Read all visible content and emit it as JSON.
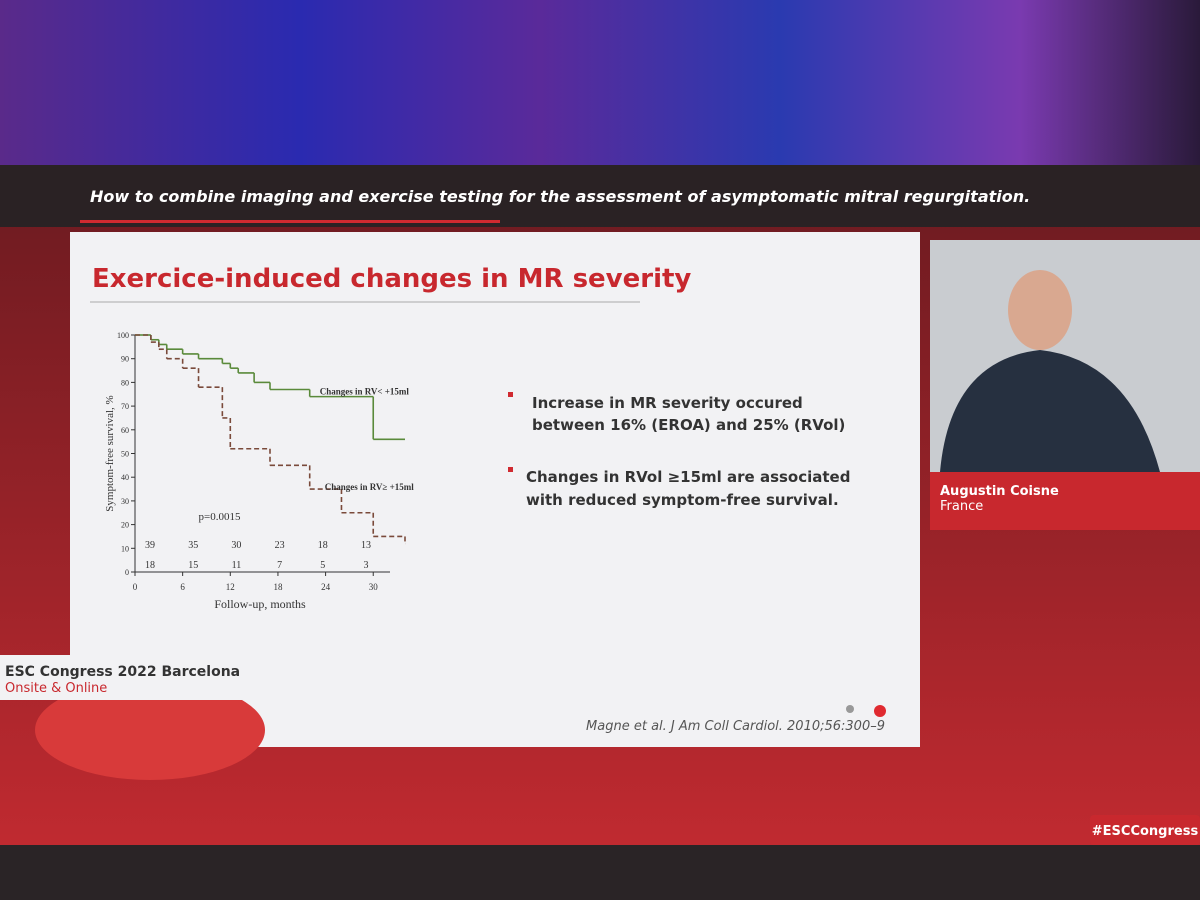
{
  "header": {
    "title": "How to combine imaging and exercise testing for the assessment of asymptomatic mitral regurgitation."
  },
  "slide": {
    "title": "Exercice-induced changes in MR severity",
    "bullets": [
      [
        "Increase in MR severity occured",
        "between 16% (EROA) and 25% (RVol)"
      ],
      [
        "Changes in RVol ≥15ml are associated",
        "with reduced symptom-free survival."
      ]
    ],
    "citation": "Magne et al. J Am Coll Cardiol. 2010;56:300–9",
    "footer": [
      "ESC Congress 2022 Barcelona",
      "Onsite & Online"
    ]
  },
  "speaker": {
    "name": "Augustin Coisne",
    "country": "France"
  },
  "hashtag": "#ESCCongress",
  "chart_data": {
    "type": "line",
    "xlabel": "Follow-up, months",
    "ylabel": "Symptom-free survival, %",
    "annotation": "p=0.0015",
    "x": [
      0,
      2,
      3,
      4,
      6,
      8,
      11,
      12,
      13,
      15,
      17,
      22,
      26,
      30,
      34
    ],
    "series": [
      {
        "name": "Changes in RV< +15ml",
        "color": "#5a8a3a",
        "dashed": false,
        "values": [
          100,
          98,
          96,
          94,
          92,
          90,
          88,
          86,
          84,
          80,
          77,
          74,
          74,
          56,
          56
        ]
      },
      {
        "name": "Changes in RV≥ +15ml",
        "color": "#7a4a3a",
        "dashed": true,
        "values": [
          100,
          97,
          94,
          90,
          86,
          78,
          65,
          52,
          52,
          52,
          45,
          35,
          25,
          15,
          12
        ]
      }
    ],
    "numbers_at_risk": [
      [
        39,
        35,
        30,
        23,
        18,
        13
      ],
      [
        18,
        15,
        11,
        7,
        5,
        3
      ]
    ],
    "xlim": [
      0,
      34
    ],
    "ylim": [
      0,
      100
    ],
    "xticks": [
      0,
      6,
      12,
      18,
      24,
      30
    ],
    "yticks": [
      0,
      10,
      20,
      30,
      40,
      50,
      60,
      70,
      80,
      90,
      100
    ]
  }
}
